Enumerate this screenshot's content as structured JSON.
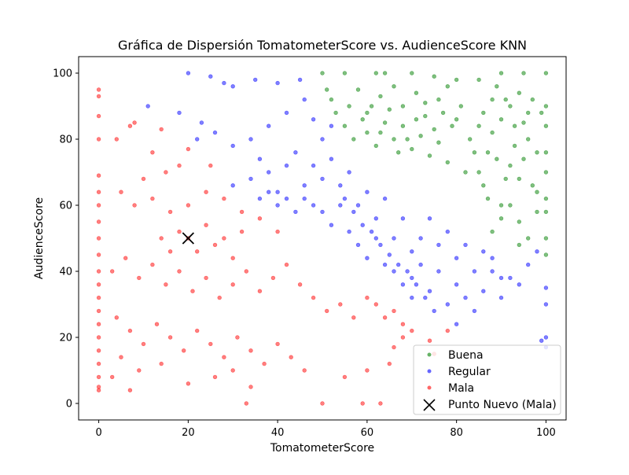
{
  "chart_data": {
    "type": "scatter",
    "title": "Gráfica de Dispersión TomatometerScore vs. AudienceScore KNN",
    "xlabel": "TomatometerScore",
    "ylabel": "AudienceScore",
    "xlim": [
      -4.5,
      104.5
    ],
    "ylim": [
      -5,
      105
    ],
    "xticks": [
      0,
      20,
      40,
      60,
      80,
      100
    ],
    "yticks": [
      0,
      20,
      40,
      60,
      80,
      100
    ],
    "grid": false,
    "legend_position": "lower-right",
    "point_alpha": 0.5,
    "series": [
      {
        "name": "Buena",
        "color": "#008000",
        "approximate_region": "upper-right: TomatometerScore >= 50, AudienceScore above line through (57,73) and (88,47)",
        "points": [
          [
            50,
            100
          ],
          [
            55,
            100
          ],
          [
            62,
            100
          ],
          [
            64,
            100
          ],
          [
            70,
            100
          ],
          [
            75,
            99
          ],
          [
            80,
            98
          ],
          [
            85,
            98
          ],
          [
            90,
            100
          ],
          [
            95,
            100
          ],
          [
            100,
            100
          ],
          [
            52,
            92
          ],
          [
            56,
            90
          ],
          [
            58,
            95
          ],
          [
            60,
            88
          ],
          [
            63,
            93
          ],
          [
            66,
            96
          ],
          [
            68,
            90
          ],
          [
            71,
            94
          ],
          [
            73,
            87
          ],
          [
            76,
            92
          ],
          [
            78,
            96
          ],
          [
            60,
            82
          ],
          [
            62,
            78
          ],
          [
            64,
            85
          ],
          [
            66,
            80
          ],
          [
            68,
            84
          ],
          [
            70,
            77
          ],
          [
            72,
            81
          ],
          [
            74,
            75
          ],
          [
            76,
            79
          ],
          [
            78,
            73
          ],
          [
            80,
            86
          ],
          [
            82,
            70
          ],
          [
            84,
            76
          ],
          [
            86,
            66
          ],
          [
            88,
            82
          ],
          [
            90,
            60
          ],
          [
            92,
            72
          ],
          [
            94,
            55
          ],
          [
            96,
            80
          ],
          [
            98,
            64
          ],
          [
            100,
            90
          ],
          [
            100,
            84
          ],
          [
            100,
            76
          ],
          [
            100,
            70
          ],
          [
            100,
            62
          ],
          [
            100,
            58
          ],
          [
            100,
            50
          ],
          [
            100,
            45
          ],
          [
            99,
            88
          ],
          [
            97,
            92
          ],
          [
            95,
            85
          ],
          [
            93,
            78
          ],
          [
            91,
            68
          ],
          [
            89,
            74
          ],
          [
            87,
            62
          ],
          [
            85,
            70
          ],
          [
            83,
            80
          ],
          [
            81,
            90
          ],
          [
            79,
            84
          ],
          [
            77,
            88
          ],
          [
            75,
            83
          ],
          [
            73,
            91
          ],
          [
            71,
            86
          ],
          [
            69,
            80
          ],
          [
            67,
            76
          ],
          [
            65,
            89
          ],
          [
            63,
            82
          ],
          [
            61,
            90
          ],
          [
            59,
            86
          ],
          [
            57,
            80
          ],
          [
            55,
            84
          ],
          [
            53,
            88
          ],
          [
            51,
            95
          ],
          [
            86,
            88
          ],
          [
            88,
            92
          ],
          [
            90,
            86
          ],
          [
            92,
            90
          ],
          [
            94,
            94
          ],
          [
            96,
            88
          ],
          [
            98,
            76
          ],
          [
            94,
            68
          ],
          [
            92,
            60
          ],
          [
            90,
            56
          ],
          [
            88,
            52
          ],
          [
            96,
            50
          ],
          [
            94,
            48
          ],
          [
            98,
            58
          ],
          [
            97,
            66
          ],
          [
            95,
            74
          ],
          [
            93,
            84
          ],
          [
            91,
            92
          ],
          [
            89,
            96
          ],
          [
            87,
            76
          ],
          [
            85,
            84
          ]
        ]
      },
      {
        "name": "Regular",
        "color": "#0000ff",
        "approximate_region": "middle diagonal band between Mala and Buena",
        "points": [
          [
            11,
            90
          ],
          [
            18,
            88
          ],
          [
            20,
            100
          ],
          [
            23,
            85
          ],
          [
            25,
            99
          ],
          [
            28,
            97
          ],
          [
            30,
            96
          ],
          [
            35,
            98
          ],
          [
            40,
            97
          ],
          [
            45,
            98
          ],
          [
            22,
            80
          ],
          [
            26,
            82
          ],
          [
            30,
            78
          ],
          [
            34,
            80
          ],
          [
            38,
            84
          ],
          [
            42,
            88
          ],
          [
            46,
            92
          ],
          [
            48,
            86
          ],
          [
            50,
            80
          ],
          [
            52,
            84
          ],
          [
            30,
            66
          ],
          [
            34,
            68
          ],
          [
            36,
            74
          ],
          [
            38,
            70
          ],
          [
            40,
            64
          ],
          [
            42,
            72
          ],
          [
            44,
            76
          ],
          [
            46,
            66
          ],
          [
            48,
            72
          ],
          [
            50,
            68
          ],
          [
            52,
            74
          ],
          [
            54,
            66
          ],
          [
            56,
            70
          ],
          [
            58,
            60
          ],
          [
            60,
            64
          ],
          [
            62,
            56
          ],
          [
            64,
            62
          ],
          [
            66,
            50
          ],
          [
            68,
            56
          ],
          [
            70,
            46
          ],
          [
            50,
            58
          ],
          [
            52,
            54
          ],
          [
            54,
            60
          ],
          [
            56,
            52
          ],
          [
            58,
            48
          ],
          [
            60,
            44
          ],
          [
            62,
            50
          ],
          [
            64,
            42
          ],
          [
            66,
            40
          ],
          [
            68,
            36
          ],
          [
            70,
            38
          ],
          [
            72,
            42
          ],
          [
            74,
            34
          ],
          [
            76,
            40
          ],
          [
            78,
            30
          ],
          [
            80,
            36
          ],
          [
            82,
            32
          ],
          [
            84,
            28
          ],
          [
            86,
            34
          ],
          [
            88,
            40
          ],
          [
            90,
            32
          ],
          [
            92,
            38
          ],
          [
            94,
            36
          ],
          [
            96,
            42
          ],
          [
            98,
            46
          ],
          [
            100,
            30
          ],
          [
            100,
            35
          ],
          [
            100,
            20
          ],
          [
            100,
            17
          ],
          [
            99,
            19
          ],
          [
            72,
            50
          ],
          [
            74,
            56
          ],
          [
            76,
            48
          ],
          [
            78,
            52
          ],
          [
            80,
            44
          ],
          [
            82,
            48
          ],
          [
            84,
            40
          ],
          [
            86,
            46
          ],
          [
            88,
            44
          ],
          [
            90,
            38
          ],
          [
            55,
            62
          ],
          [
            57,
            58
          ],
          [
            59,
            54
          ],
          [
            61,
            52
          ],
          [
            63,
            48
          ],
          [
            65,
            45
          ],
          [
            67,
            42
          ],
          [
            69,
            40
          ],
          [
            71,
            36
          ],
          [
            73,
            32
          ],
          [
            44,
            58
          ],
          [
            46,
            62
          ],
          [
            48,
            60
          ],
          [
            40,
            60
          ],
          [
            42,
            62
          ],
          [
            36,
            62
          ],
          [
            38,
            64
          ],
          [
            80,
            24
          ],
          [
            75,
            28
          ],
          [
            70,
            32
          ]
        ]
      },
      {
        "name": "Mala",
        "color": "#ff0000",
        "approximate_region": "lower-left plus column at TomatometerScore = 0",
        "points": [
          [
            0,
            95
          ],
          [
            0,
            93
          ],
          [
            0,
            87
          ],
          [
            0,
            80
          ],
          [
            0,
            69
          ],
          [
            0,
            64
          ],
          [
            0,
            60
          ],
          [
            0,
            55
          ],
          [
            0,
            50
          ],
          [
            0,
            45
          ],
          [
            0,
            40
          ],
          [
            0,
            36
          ],
          [
            0,
            32
          ],
          [
            0,
            28
          ],
          [
            0,
            24
          ],
          [
            0,
            20
          ],
          [
            0,
            16
          ],
          [
            0,
            12
          ],
          [
            0,
            8
          ],
          [
            0,
            5
          ],
          [
            0,
            4
          ],
          [
            4,
            80
          ],
          [
            7,
            84
          ],
          [
            8,
            85
          ],
          [
            14,
            83
          ],
          [
            12,
            76
          ],
          [
            18,
            72
          ],
          [
            20,
            77
          ],
          [
            15,
            70
          ],
          [
            10,
            68
          ],
          [
            25,
            72
          ],
          [
            5,
            64
          ],
          [
            8,
            60
          ],
          [
            12,
            62
          ],
          [
            16,
            58
          ],
          [
            20,
            60
          ],
          [
            24,
            64
          ],
          [
            28,
            62
          ],
          [
            32,
            58
          ],
          [
            36,
            56
          ],
          [
            40,
            52
          ],
          [
            3,
            40
          ],
          [
            6,
            44
          ],
          [
            9,
            38
          ],
          [
            12,
            42
          ],
          [
            15,
            36
          ],
          [
            18,
            40
          ],
          [
            21,
            34
          ],
          [
            24,
            38
          ],
          [
            27,
            32
          ],
          [
            30,
            36
          ],
          [
            33,
            40
          ],
          [
            36,
            34
          ],
          [
            39,
            38
          ],
          [
            42,
            42
          ],
          [
            45,
            36
          ],
          [
            48,
            32
          ],
          [
            51,
            28
          ],
          [
            54,
            30
          ],
          [
            57,
            26
          ],
          [
            60,
            32
          ],
          [
            62,
            30
          ],
          [
            64,
            26
          ],
          [
            66,
            28
          ],
          [
            68,
            24
          ],
          [
            70,
            22
          ],
          [
            4,
            26
          ],
          [
            7,
            22
          ],
          [
            10,
            18
          ],
          [
            13,
            24
          ],
          [
            16,
            20
          ],
          [
            19,
            16
          ],
          [
            22,
            22
          ],
          [
            25,
            18
          ],
          [
            28,
            14
          ],
          [
            31,
            20
          ],
          [
            34,
            16
          ],
          [
            37,
            12
          ],
          [
            40,
            18
          ],
          [
            43,
            14
          ],
          [
            46,
            10
          ],
          [
            7,
            4
          ],
          [
            20,
            6
          ],
          [
            33,
            0
          ],
          [
            50,
            0
          ],
          [
            59,
            0
          ],
          [
            63,
            0
          ],
          [
            34,
            5
          ],
          [
            55,
            8
          ],
          [
            60,
            10
          ],
          [
            65,
            12
          ],
          [
            75,
            15
          ],
          [
            74,
            19
          ],
          [
            78,
            22
          ],
          [
            68,
            20
          ],
          [
            66,
            17
          ],
          [
            5,
            14
          ],
          [
            3,
            8
          ],
          [
            9,
            10
          ],
          [
            14,
            12
          ],
          [
            26,
            8
          ],
          [
            30,
            10
          ],
          [
            20,
            50
          ],
          [
            22,
            46
          ],
          [
            18,
            52
          ],
          [
            24,
            54
          ],
          [
            26,
            48
          ],
          [
            16,
            46
          ],
          [
            28,
            50
          ],
          [
            30,
            44
          ],
          [
            14,
            50
          ],
          [
            32,
            52
          ]
        ]
      }
    ],
    "new_point": {
      "name": "Punto Nuevo (Mala)",
      "x": 20,
      "y": 50,
      "marker": "x",
      "color": "#000000"
    }
  }
}
